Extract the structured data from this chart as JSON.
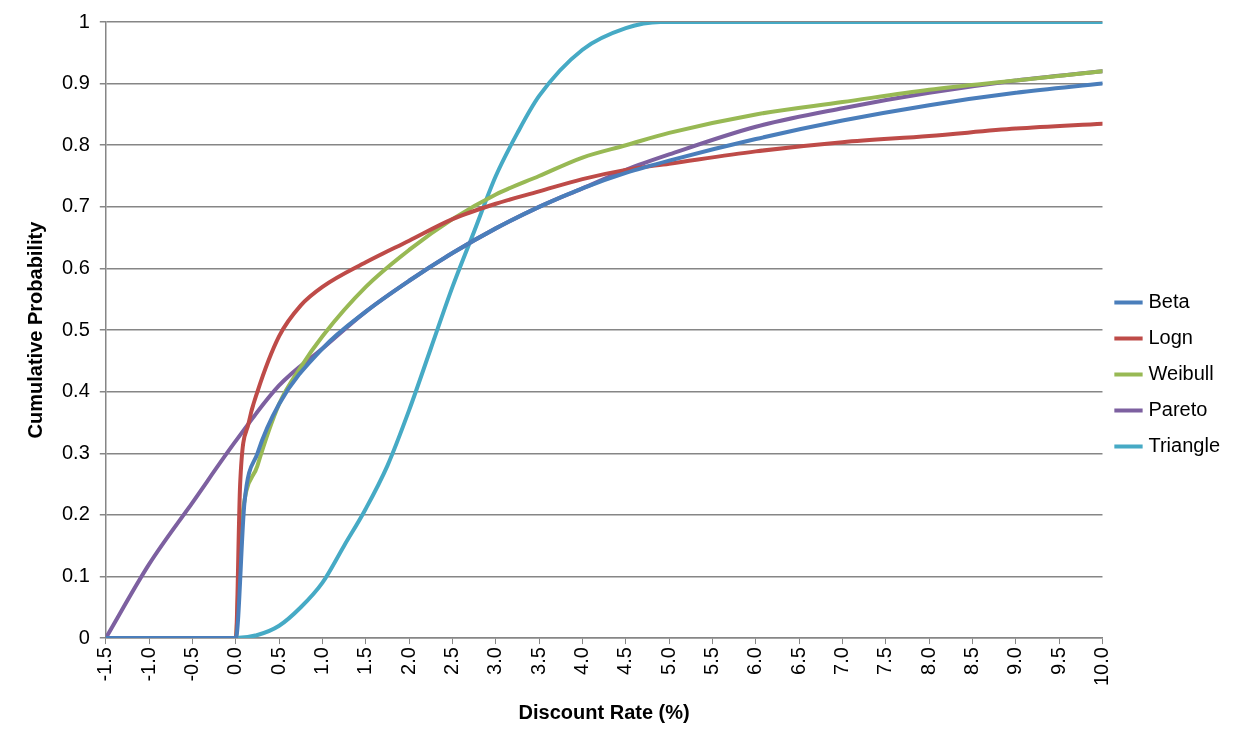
{
  "chart_data": {
    "type": "line",
    "xlabel": "Discount Rate (%)",
    "ylabel": "Cumulative Probability",
    "xlim": [
      -1.5,
      10
    ],
    "xticks": [
      {
        "value": -1.5,
        "label": "-1.5"
      },
      {
        "value": -1,
        "label": "-1.0"
      },
      {
        "value": -0.5,
        "label": "-0.5"
      },
      {
        "value": 0,
        "label": "0.0"
      },
      {
        "value": 0.5,
        "label": "0.5"
      },
      {
        "value": 1,
        "label": "1.0"
      },
      {
        "value": 1.5,
        "label": "1.5"
      },
      {
        "value": 2,
        "label": "2.0"
      },
      {
        "value": 2.5,
        "label": "2.5"
      },
      {
        "value": 3,
        "label": "3.0"
      },
      {
        "value": 3.5,
        "label": "3.5"
      },
      {
        "value": 4,
        "label": "4.0"
      },
      {
        "value": 4.5,
        "label": "4.5"
      },
      {
        "value": 5,
        "label": "5.0"
      },
      {
        "value": 5.5,
        "label": "5.5"
      },
      {
        "value": 6,
        "label": "6.0"
      },
      {
        "value": 6.5,
        "label": "6.5"
      },
      {
        "value": 7,
        "label": "7.0"
      },
      {
        "value": 7.5,
        "label": "7.5"
      },
      {
        "value": 8,
        "label": "8.0"
      },
      {
        "value": 8.5,
        "label": "8.5"
      },
      {
        "value": 9,
        "label": "9.0"
      },
      {
        "value": 9.5,
        "label": "9.5"
      },
      {
        "value": 10,
        "label": "10.0"
      }
    ],
    "ylim": [
      0,
      1
    ],
    "yticks": [
      0,
      0.1,
      0.2,
      0.3,
      0.4,
      0.5,
      0.6,
      0.7,
      0.8,
      0.9,
      1
    ],
    "grid": "y",
    "legend": "right",
    "marker": "none",
    "line_style": "solid",
    "series": [
      {
        "name": "Beta",
        "color": "#4a7ebb",
        "x": [
          -1.5,
          0,
          0.1,
          0.25,
          0.5,
          1,
          1.5,
          2,
          2.5,
          3,
          3.5,
          4,
          4.5,
          5,
          6,
          7,
          8,
          9,
          10
        ],
        "values": [
          0,
          0,
          0.22,
          0.3,
          0.38,
          0.47,
          0.53,
          0.58,
          0.625,
          0.665,
          0.7,
          0.73,
          0.755,
          0.775,
          0.81,
          0.84,
          0.865,
          0.885,
          0.9
        ]
      },
      {
        "name": "Logn",
        "color": "#be4b48",
        "x": [
          -1.5,
          0,
          0.05,
          0.15,
          0.25,
          0.5,
          0.75,
          1,
          1.5,
          2,
          2.5,
          3,
          3.5,
          4,
          4.5,
          5,
          6,
          7,
          8,
          9,
          10
        ],
        "values": [
          0,
          0,
          0.25,
          0.35,
          0.4,
          0.49,
          0.54,
          0.57,
          0.61,
          0.645,
          0.68,
          0.705,
          0.725,
          0.745,
          0.76,
          0.77,
          0.79,
          0.805,
          0.815,
          0.827,
          0.835
        ]
      },
      {
        "name": "Weibull",
        "color": "#98b954",
        "x": [
          -1.5,
          0,
          0.05,
          0.25,
          0.5,
          0.75,
          1,
          1.5,
          2,
          2.5,
          3,
          3.5,
          4,
          4.5,
          5,
          6,
          7,
          8,
          9,
          10
        ],
        "values": [
          0,
          0,
          0.16,
          0.28,
          0.38,
          0.44,
          0.49,
          0.57,
          0.63,
          0.68,
          0.72,
          0.75,
          0.78,
          0.8,
          0.82,
          0.85,
          0.87,
          0.89,
          0.905,
          0.92
        ]
      },
      {
        "name": "Pareto",
        "color": "#7d60a0",
        "x": [
          -1.5,
          -1,
          -0.5,
          0,
          0.5,
          1,
          1.5,
          2,
          2.5,
          3,
          3.5,
          4,
          4.5,
          5,
          6,
          7,
          8,
          9,
          10
        ],
        "values": [
          0,
          0.12,
          0.22,
          0.32,
          0.41,
          0.47,
          0.53,
          0.58,
          0.625,
          0.665,
          0.7,
          0.73,
          0.76,
          0.785,
          0.83,
          0.86,
          0.885,
          0.905,
          0.92
        ]
      },
      {
        "name": "Triangle",
        "color": "#46aac5",
        "x": [
          -1.5,
          0,
          0.25,
          0.5,
          0.75,
          1,
          1.25,
          1.5,
          1.75,
          2,
          2.25,
          2.5,
          2.75,
          3,
          3.25,
          3.5,
          4,
          4.5,
          4.9,
          10
        ],
        "values": [
          0,
          0,
          0.005,
          0.02,
          0.05,
          0.09,
          0.15,
          0.21,
          0.28,
          0.37,
          0.47,
          0.57,
          0.66,
          0.75,
          0.82,
          0.88,
          0.955,
          0.99,
          1,
          1
        ]
      }
    ]
  }
}
